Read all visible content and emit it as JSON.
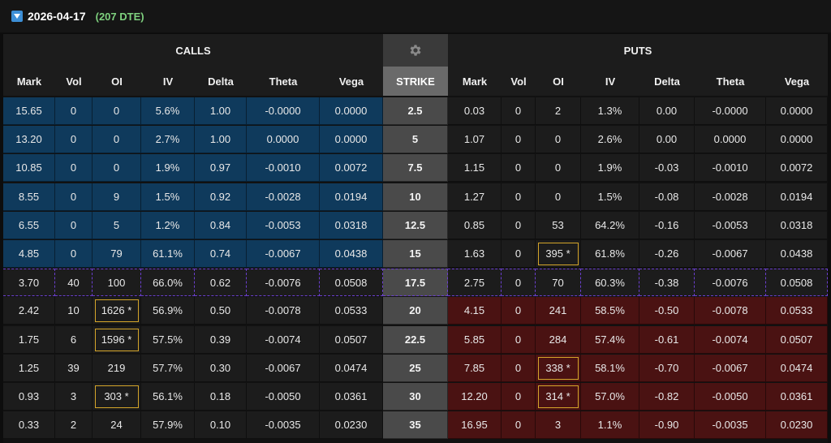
{
  "expiration": {
    "date": "2026-04-17",
    "dte": "(207 DTE)"
  },
  "headers": {
    "calls": "CALLS",
    "puts": "PUTS",
    "strike": "STRIKE",
    "columns": [
      "Mark",
      "Vol",
      "OI",
      "IV",
      "Delta",
      "Theta",
      "Vega"
    ]
  },
  "colors": {
    "itm_call": "#0f3a5c",
    "itm_put": "#4a1212",
    "highlight": "#d4a52a",
    "atm_border": "#6b3fd0",
    "dte": "#7ed07e"
  },
  "rows": [
    {
      "strike": "2.5",
      "call": [
        "15.65",
        "0",
        "0",
        "5.6%",
        "1.00",
        "-0.0000",
        "0.0000"
      ],
      "put": [
        "0.03",
        "0",
        "2",
        "1.3%",
        "0.00",
        "-0.0000",
        "0.0000"
      ],
      "call_itm": true,
      "put_itm": false,
      "call_oi_hl": false,
      "put_oi_hl": false,
      "atm": false
    },
    {
      "strike": "5",
      "call": [
        "13.20",
        "0",
        "0",
        "2.7%",
        "1.00",
        "0.0000",
        "0.0000"
      ],
      "put": [
        "1.07",
        "0",
        "0",
        "2.6%",
        "0.00",
        "0.0000",
        "0.0000"
      ],
      "call_itm": true,
      "put_itm": false,
      "call_oi_hl": false,
      "put_oi_hl": false,
      "atm": false
    },
    {
      "strike": "7.5",
      "call": [
        "10.85",
        "0",
        "0",
        "1.9%",
        "0.97",
        "-0.0010",
        "0.0072"
      ],
      "put": [
        "1.15",
        "0",
        "0",
        "1.9%",
        "-0.03",
        "-0.0010",
        "0.0072"
      ],
      "call_itm": true,
      "put_itm": false,
      "call_oi_hl": false,
      "put_oi_hl": false,
      "atm": false
    },
    {
      "strike": "10",
      "call": [
        "8.55",
        "0",
        "9",
        "1.5%",
        "0.92",
        "-0.0028",
        "0.0194"
      ],
      "put": [
        "1.27",
        "0",
        "0",
        "1.5%",
        "-0.08",
        "-0.0028",
        "0.0194"
      ],
      "call_itm": true,
      "put_itm": false,
      "call_oi_hl": false,
      "put_oi_hl": false,
      "atm": false
    },
    {
      "strike": "12.5",
      "call": [
        "6.55",
        "0",
        "5",
        "1.2%",
        "0.84",
        "-0.0053",
        "0.0318"
      ],
      "put": [
        "0.85",
        "0",
        "53",
        "64.2%",
        "-0.16",
        "-0.0053",
        "0.0318"
      ],
      "call_itm": true,
      "put_itm": false,
      "call_oi_hl": false,
      "put_oi_hl": false,
      "atm": false
    },
    {
      "strike": "15",
      "call": [
        "4.85",
        "0",
        "79",
        "61.1%",
        "0.74",
        "-0.0067",
        "0.0438"
      ],
      "put": [
        "1.63",
        "0",
        "395 *",
        "61.8%",
        "-0.26",
        "-0.0067",
        "0.0438"
      ],
      "call_itm": true,
      "put_itm": false,
      "call_oi_hl": false,
      "put_oi_hl": true,
      "atm": false
    },
    {
      "strike": "17.5",
      "call": [
        "3.70",
        "40",
        "100",
        "66.0%",
        "0.62",
        "-0.0076",
        "0.0508"
      ],
      "put": [
        "2.75",
        "0",
        "70",
        "60.3%",
        "-0.38",
        "-0.0076",
        "0.0508"
      ],
      "call_itm": false,
      "put_itm": false,
      "call_oi_hl": false,
      "put_oi_hl": false,
      "atm": true
    },
    {
      "strike": "20",
      "call": [
        "2.42",
        "10",
        "1626 *",
        "56.9%",
        "0.50",
        "-0.0078",
        "0.0533"
      ],
      "put": [
        "4.15",
        "0",
        "241",
        "58.5%",
        "-0.50",
        "-0.0078",
        "0.0533"
      ],
      "call_itm": false,
      "put_itm": true,
      "call_oi_hl": true,
      "put_oi_hl": false,
      "atm": false
    },
    {
      "strike": "22.5",
      "call": [
        "1.75",
        "6",
        "1596 *",
        "57.5%",
        "0.39",
        "-0.0074",
        "0.0507"
      ],
      "put": [
        "5.85",
        "0",
        "284",
        "57.4%",
        "-0.61",
        "-0.0074",
        "0.0507"
      ],
      "call_itm": false,
      "put_itm": true,
      "call_oi_hl": true,
      "put_oi_hl": false,
      "atm": false
    },
    {
      "strike": "25",
      "call": [
        "1.25",
        "39",
        "219",
        "57.7%",
        "0.30",
        "-0.0067",
        "0.0474"
      ],
      "put": [
        "7.85",
        "0",
        "338 *",
        "58.1%",
        "-0.70",
        "-0.0067",
        "0.0474"
      ],
      "call_itm": false,
      "put_itm": true,
      "call_oi_hl": false,
      "put_oi_hl": true,
      "atm": false
    },
    {
      "strike": "30",
      "call": [
        "0.93",
        "3",
        "303 *",
        "56.1%",
        "0.18",
        "-0.0050",
        "0.0361"
      ],
      "put": [
        "12.20",
        "0",
        "314 *",
        "57.0%",
        "-0.82",
        "-0.0050",
        "0.0361"
      ],
      "call_itm": false,
      "put_itm": true,
      "call_oi_hl": true,
      "put_oi_hl": true,
      "atm": false
    },
    {
      "strike": "35",
      "call": [
        "0.33",
        "2",
        "24",
        "57.9%",
        "0.10",
        "-0.0035",
        "0.0230"
      ],
      "put": [
        "16.95",
        "0",
        "3",
        "1.1%",
        "-0.90",
        "-0.0035",
        "0.0230"
      ],
      "call_itm": false,
      "put_itm": true,
      "call_oi_hl": false,
      "put_oi_hl": false,
      "atm": false
    }
  ]
}
